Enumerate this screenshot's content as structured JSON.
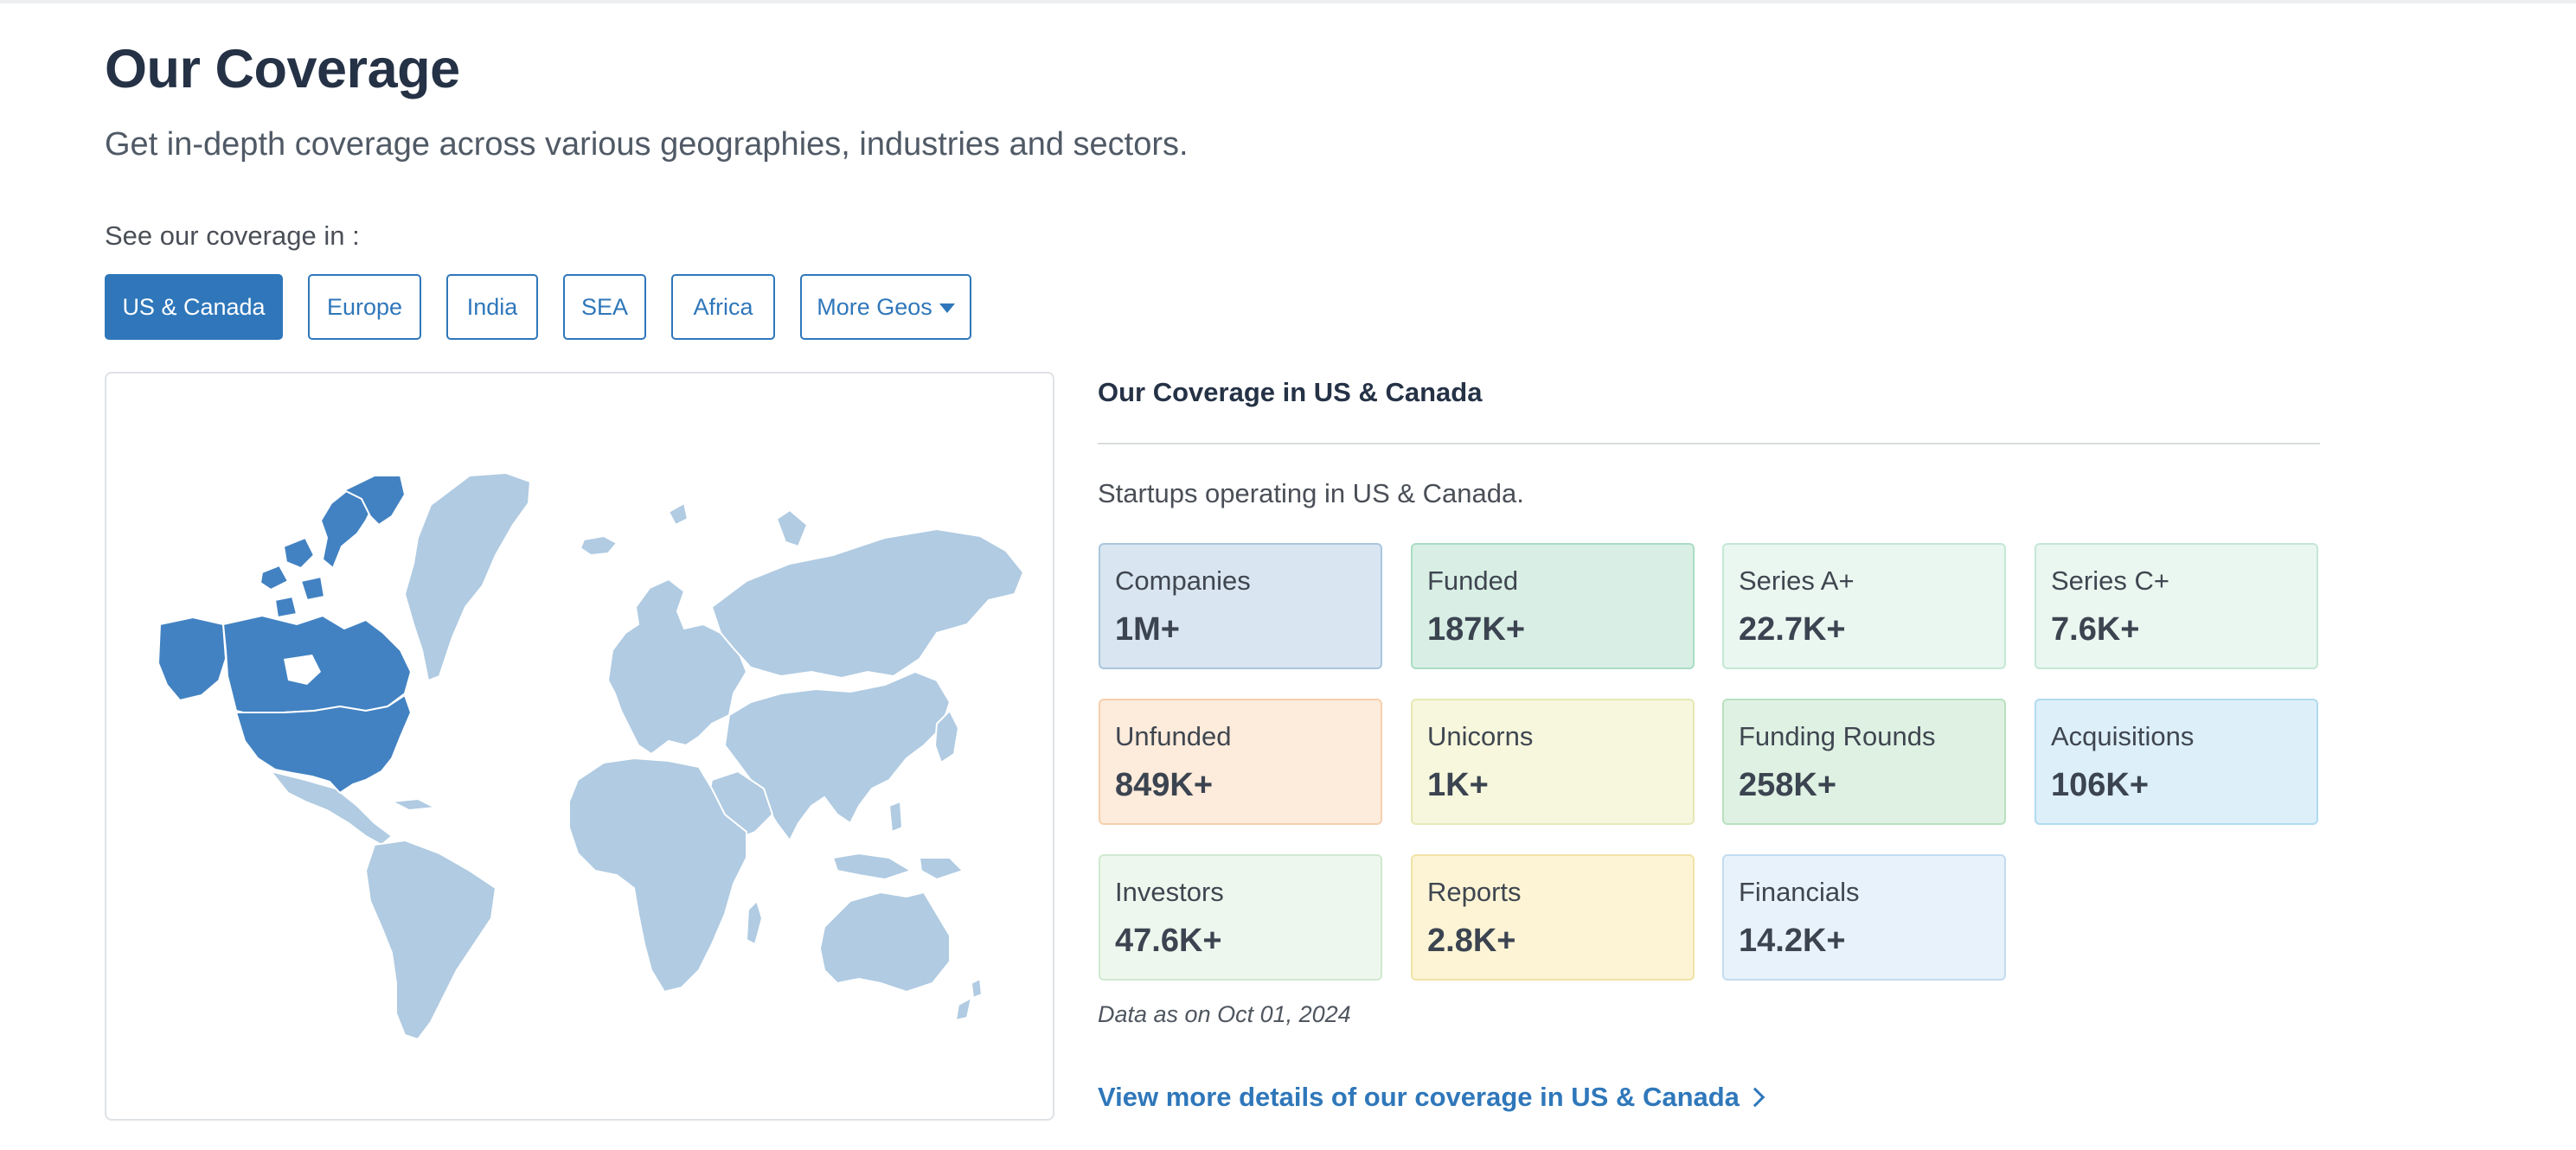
{
  "header": {
    "title": "Our Coverage",
    "subtitle": "Get in-depth coverage across various geographies, industries and sectors."
  },
  "geo_selector": {
    "label": "See our coverage in :",
    "tabs": [
      {
        "label": "US & Canada",
        "active": true
      },
      {
        "label": "Europe",
        "active": false
      },
      {
        "label": "India",
        "active": false
      },
      {
        "label": "SEA",
        "active": false
      },
      {
        "label": "Africa",
        "active": false
      },
      {
        "label": "More Geos",
        "active": false,
        "icon": "caret-down-icon"
      }
    ]
  },
  "map": {
    "highlighted_region": "US & Canada",
    "colors": {
      "highlight": "#4282c2",
      "base": "#b0cbe2",
      "border": "#ffffff"
    }
  },
  "coverage": {
    "title": "Our Coverage in US & Canada",
    "description": "Startups operating in US & Canada.",
    "stats": [
      {
        "label": "Companies",
        "value": "1M+",
        "bg": "#d9e5f0",
        "border": "#a9c6df"
      },
      {
        "label": "Funded",
        "value": "187K+",
        "bg": "#d9efe5",
        "border": "#a9dcc4"
      },
      {
        "label": "Series A+",
        "value": "22.7K+",
        "bg": "#eaf6f0",
        "border": "#c4e8d6"
      },
      {
        "label": "Series C+",
        "value": "7.6K+",
        "bg": "#eaf6f0",
        "border": "#c4e8d6"
      },
      {
        "label": "Unfunded",
        "value": "849K+",
        "bg": "#fdebdb",
        "border": "#f5d0ad"
      },
      {
        "label": "Unicorns",
        "value": "1K+",
        "bg": "#f6f7dc",
        "border": "#e6e8b6"
      },
      {
        "label": "Funding Rounds",
        "value": "258K+",
        "bg": "#dff1e3",
        "border": "#b8e1c0"
      },
      {
        "label": "Acquisitions",
        "value": "106K+",
        "bg": "#ddeff9",
        "border": "#b0dbf0"
      },
      {
        "label": "Investors",
        "value": "47.6K+",
        "bg": "#eef7ee",
        "border": "#d0e9d0"
      },
      {
        "label": "Reports",
        "value": "2.8K+",
        "bg": "#fcf4d5",
        "border": "#f1e2a6"
      },
      {
        "label": "Financials",
        "value": "14.2K+",
        "bg": "#e8f2fb",
        "border": "#c3dcf0"
      }
    ],
    "data_date": "Data as on Oct 01, 2024",
    "more_link": "View more details of our coverage in US & Canada",
    "more_link_icon": "chevron-right-icon"
  }
}
